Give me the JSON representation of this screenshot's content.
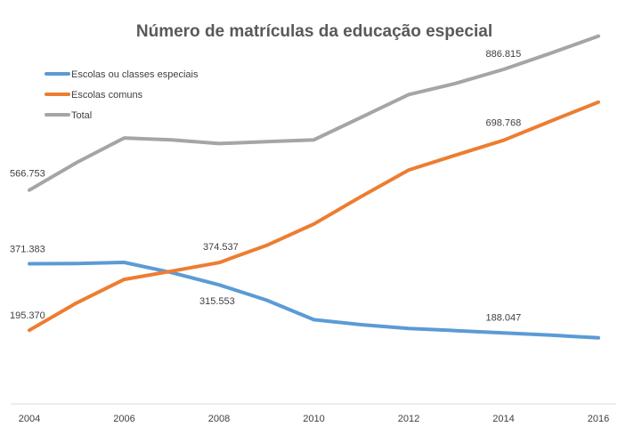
{
  "chart_data": {
    "type": "line",
    "title": "Número de matrículas da educação especial",
    "xlabel": "",
    "ylabel": "",
    "x": [
      2004,
      2005,
      2006,
      2007,
      2008,
      2009,
      2010,
      2011,
      2012,
      2013,
      2014,
      2015,
      2016
    ],
    "xticks": [
      "2004",
      "2006",
      "2008",
      "2010",
      "2012",
      "2014",
      "2016"
    ],
    "ylim": [
      0,
      1000000
    ],
    "grid": false,
    "legend_position": "top-left",
    "series": [
      {
        "name": "Escolas ou classes especiais",
        "color": "#5B9BD5",
        "values": [
          371383,
          372000,
          375000,
          348000,
          315553,
          275000,
          223000,
          210000,
          200000,
          194000,
          188047,
          182000,
          175000
        ]
      },
      {
        "name": "Escolas comuns",
        "color": "#ED7D31",
        "values": [
          195370,
          268000,
          330000,
          352000,
          374537,
          420000,
          477000,
          550000,
          620000,
          660000,
          698768,
          750000,
          800000
        ]
      },
      {
        "name": "Total",
        "color": "#A5A5A5",
        "values": [
          566753,
          640000,
          705000,
          700000,
          690000,
          695000,
          700000,
          760000,
          820000,
          850000,
          886815,
          930000,
          975000
        ]
      }
    ],
    "data_labels": [
      {
        "series": 0,
        "index": 0,
        "text": "371.383"
      },
      {
        "series": 0,
        "index": 4,
        "text": "315.553"
      },
      {
        "series": 0,
        "index": 10,
        "text": "188.047"
      },
      {
        "series": 1,
        "index": 0,
        "text": "195.370"
      },
      {
        "series": 1,
        "index": 4,
        "text": "374.537"
      },
      {
        "series": 1,
        "index": 10,
        "text": "698.768"
      },
      {
        "series": 2,
        "index": 0,
        "text": "566.753"
      },
      {
        "series": 2,
        "index": 10,
        "text": "886.815"
      }
    ]
  }
}
